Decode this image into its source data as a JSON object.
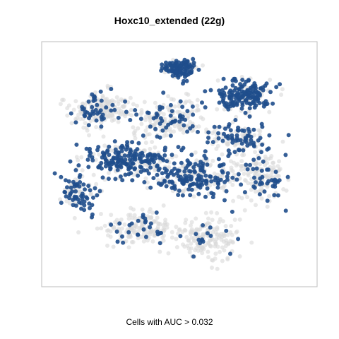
{
  "chart_data": {
    "type": "scatter",
    "title": "Hoxc10_extended (22g)",
    "xlabel": "Cells with AUC > 0.032",
    "ylabel": "",
    "axes": {
      "ticks": "none",
      "grid": false,
      "frame": true
    },
    "colors": {
      "selected": "#1f4e8c",
      "background": "#d9d9d9",
      "frame": "#bdbdbd"
    },
    "point_cloud": {
      "description_of_points": "t-SNE embedding; cells passing AUC threshold in blue, others grey",
      "clusters": [
        {
          "center": [
            0.5,
            0.08
          ],
          "spread": [
            0.06,
            0.04
          ],
          "n": 120,
          "selected_share": 0.85
        },
        {
          "center": [
            0.76,
            0.2
          ],
          "spread": [
            0.1,
            0.06
          ],
          "n": 220,
          "selected_share": 0.7
        },
        {
          "center": [
            0.72,
            0.38
          ],
          "spread": [
            0.12,
            0.05
          ],
          "n": 140,
          "selected_share": 0.4
        },
        {
          "center": [
            0.18,
            0.26
          ],
          "spread": [
            0.1,
            0.07
          ],
          "n": 200,
          "selected_share": 0.25
        },
        {
          "center": [
            0.45,
            0.3
          ],
          "spread": [
            0.14,
            0.08
          ],
          "n": 200,
          "selected_share": 0.3
        },
        {
          "center": [
            0.3,
            0.48
          ],
          "spread": [
            0.16,
            0.07
          ],
          "n": 260,
          "selected_share": 0.65
        },
        {
          "center": [
            0.1,
            0.62
          ],
          "spread": [
            0.06,
            0.08
          ],
          "n": 100,
          "selected_share": 0.55
        },
        {
          "center": [
            0.55,
            0.55
          ],
          "spread": [
            0.16,
            0.08
          ],
          "n": 260,
          "selected_share": 0.55
        },
        {
          "center": [
            0.82,
            0.55
          ],
          "spread": [
            0.1,
            0.1
          ],
          "n": 180,
          "selected_share": 0.35
        },
        {
          "center": [
            0.35,
            0.78
          ],
          "spread": [
            0.14,
            0.07
          ],
          "n": 180,
          "selected_share": 0.15
        },
        {
          "center": [
            0.6,
            0.82
          ],
          "spread": [
            0.12,
            0.08
          ],
          "n": 180,
          "selected_share": 0.12
        }
      ]
    }
  }
}
